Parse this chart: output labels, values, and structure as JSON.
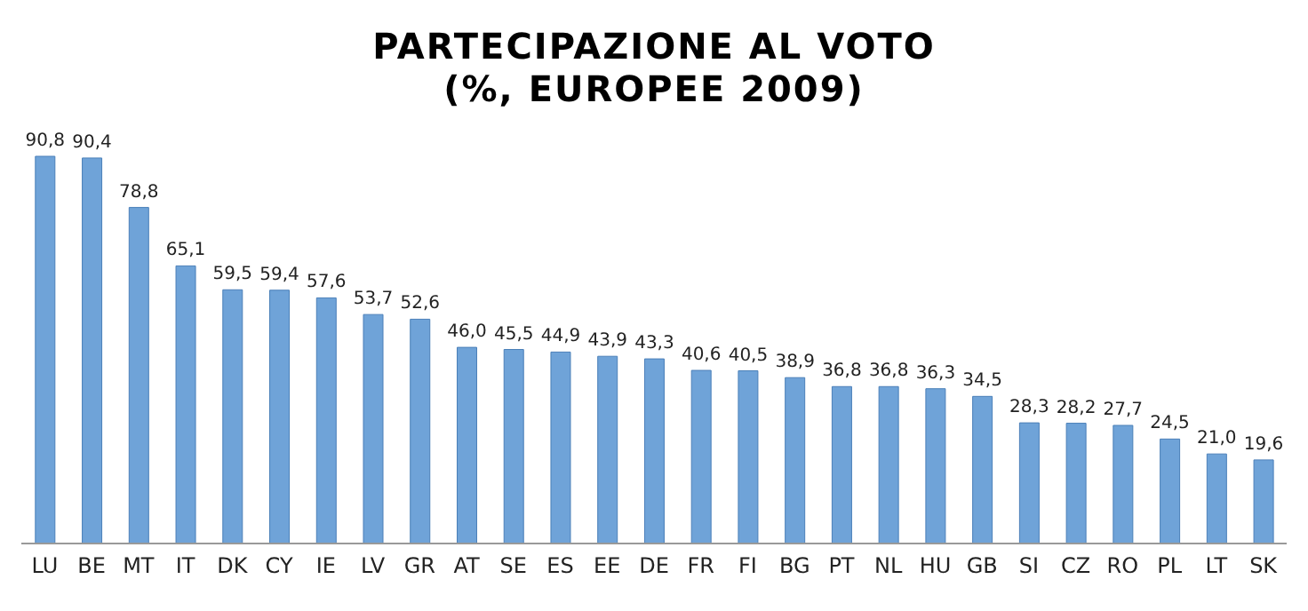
{
  "chart_data": {
    "type": "bar",
    "title": "PARTECIPAZIONE AL VOTO\n(%, EUROPEE 2009)",
    "categories": [
      "LU",
      "BE",
      "MT",
      "IT",
      "DK",
      "CY",
      "IE",
      "LV",
      "GR",
      "AT",
      "SE",
      "ES",
      "EE",
      "DE",
      "FR",
      "FI",
      "BG",
      "PT",
      "NL",
      "HU",
      "GB",
      "SI",
      "CZ",
      "RO",
      "PL",
      "LT",
      "SK"
    ],
    "values": [
      90.8,
      90.4,
      78.8,
      65.1,
      59.5,
      59.4,
      57.6,
      53.7,
      52.6,
      46.0,
      45.5,
      44.9,
      43.9,
      43.3,
      40.6,
      40.5,
      38.9,
      36.8,
      36.8,
      36.3,
      34.5,
      28.3,
      28.2,
      27.7,
      24.5,
      21.0,
      19.6
    ],
    "value_labels": [
      "90,8",
      "90,4",
      "78,8",
      "65,1",
      "59,5",
      "59,4",
      "57,6",
      "53,7",
      "52,6",
      "46,0",
      "45,5",
      "44,9",
      "43,9",
      "43,3",
      "40,6",
      "40,5",
      "38,9",
      "36,8",
      "36,8",
      "36,3",
      "34,5",
      "28,3",
      "28,2",
      "27,7",
      "24,5",
      "21,0",
      "19,6"
    ],
    "color": "#6fa3d8",
    "grid": false,
    "legend": false
  }
}
